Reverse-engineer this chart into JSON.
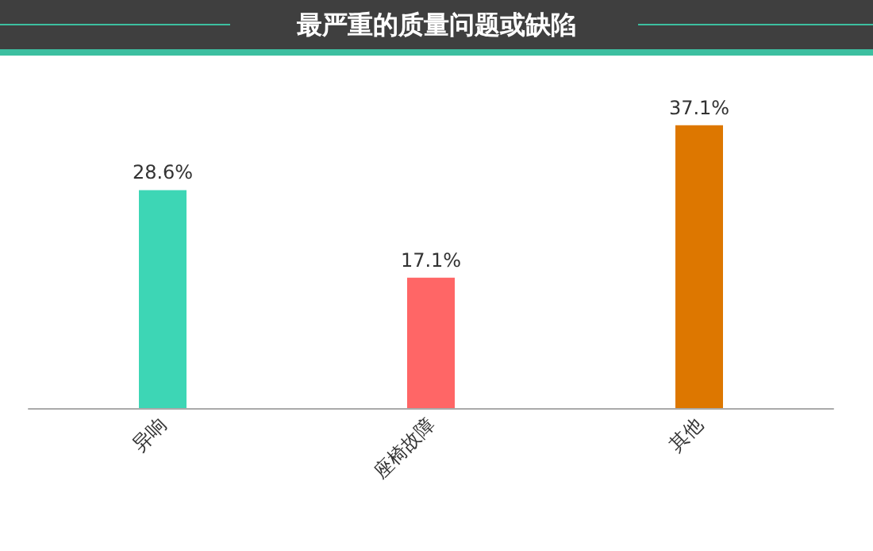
{
  "chart_data": {
    "type": "bar",
    "title": "最严重的质量问题或缺陷",
    "categories": [
      "异响",
      "座椅故障",
      "其他"
    ],
    "values": [
      28.6,
      17.1,
      37.1
    ],
    "colors": [
      "#3dd6b5",
      "#ff6666",
      "#dd7700"
    ],
    "value_labels": [
      "28.6%",
      "17.1%",
      "37.1%"
    ],
    "tick_labels": "x"
  }
}
